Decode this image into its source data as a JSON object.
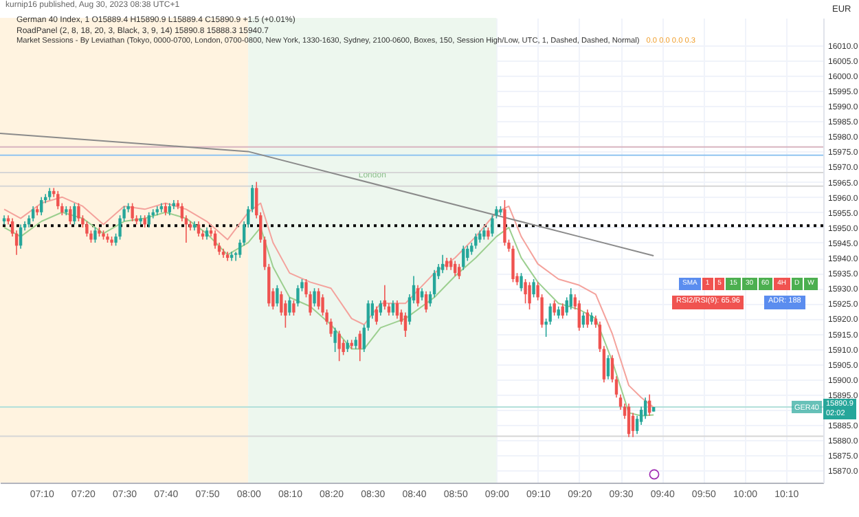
{
  "chart_data": {
    "type": "candlestick",
    "ylabel": "EUR",
    "annotations": [
      "kurnip16 published, Aug 30, 2023 08:38 UTC+1",
      "German 40 Index, 1  O15889.4 H15890.9 L15889.4 C15890.9 +1.5 (+0.01%)",
      "RoadPanel (2, 8, 18, 20, 3, Black, 3, 9, 14)  15890.8  15888.3  15940.7",
      "Market Sessions - By Leviathan (Tokyo, 0000-0700, London, 0700-0800, New York, 1330-1630, Sydney, 2100-0600, Boxes, 150, Session High/Low, UTC, 1, Dashed, Dashed, Normal)",
      "0.0 0.0 0.0 0.3",
      "SMA 1 5 15 30 60 4H D W",
      "RSI2/RSI(9): 65.96",
      "ADR: 188",
      "15890.9",
      "02:02"
    ],
    "x": [
      7.0167,
      7.0333,
      7.05,
      7.0667,
      7.0833,
      7.1,
      7.1167,
      7.1333,
      7.15,
      7.1667,
      7.1833,
      7.2,
      7.2167,
      7.2333,
      7.25,
      7.2667,
      7.2833,
      7.3,
      7.3167,
      7.3333,
      7.35,
      7.3667,
      7.3833,
      7.4,
      7.4167,
      7.4333,
      7.45,
      7.4667,
      7.4833,
      7.5,
      7.5167,
      7.5333,
      7.55,
      7.5667,
      7.5833,
      7.6,
      7.6167,
      7.6333,
      7.65,
      7.6667,
      7.6833,
      7.7,
      7.7167,
      7.7333,
      7.75,
      7.7667,
      7.7833,
      7.8,
      7.8167,
      7.8333,
      7.85,
      7.8667,
      7.8833,
      7.9,
      7.9167,
      7.9333,
      7.95,
      7.9667,
      7.9833,
      8,
      8.0167,
      8.0333,
      8.05,
      8.0667,
      8.0833,
      8.1,
      8.1167,
      8.1333,
      8.15,
      8.1667,
      8.1833,
      8.2,
      8.2167,
      8.2333,
      8.25,
      8.2667,
      8.2833,
      8.3,
      8.3167,
      8.3333,
      8.35,
      8.3667,
      8.3833,
      8.4,
      8.4167,
      8.4333,
      8.45,
      8.4667,
      8.4833,
      8.5,
      8.5167,
      8.5333,
      8.55,
      8.5667,
      8.5833,
      8.6,
      8.6167,
      8.6333,
      8.65,
      8.6667,
      8.6833,
      8.7,
      8.7167,
      8.7333,
      8.75,
      8.7667,
      8.7833,
      8.8,
      8.8167,
      8.8333,
      8.85,
      8.8667,
      8.8833,
      8.9,
      8.9167,
      8.9333,
      8.95,
      8.9667,
      8.9833,
      9,
      9.0167,
      9.0333,
      9.05,
      9.0667,
      9.0833,
      9.1,
      9.1167,
      9.1333,
      9.15,
      9.1667,
      9.1833,
      9.2,
      9.2167,
      9.2333,
      9.25,
      9.2667,
      9.2833,
      9.3,
      9.3167,
      9.3333,
      9.35,
      9.3667,
      9.3833,
      9.4,
      9.4167,
      9.4333,
      9.45,
      9.4667,
      9.4833,
      9.5,
      9.5167,
      9.5333,
      9.55,
      9.5667,
      9.5833,
      9.6,
      9.6167,
      9.6333
    ],
    "ohlc": [
      [
        15952,
        15954,
        15951,
        15953
      ],
      [
        15953,
        15954,
        15951,
        15952
      ],
      [
        15952,
        15953,
        15947,
        15948
      ],
      [
        15948,
        15949,
        15941,
        15944
      ],
      [
        15944,
        15951,
        15943,
        15950
      ],
      [
        15950,
        15952,
        15949,
        15951
      ],
      [
        15951,
        15954,
        15950,
        15953
      ],
      [
        15953,
        15957,
        15952,
        15956
      ],
      [
        15956,
        15957,
        15954,
        15955
      ],
      [
        15955,
        15960,
        15954,
        15959
      ],
      [
        15959,
        15961,
        15958,
        15960
      ],
      [
        15960,
        15963,
        15959,
        15962
      ],
      [
        15962,
        15963,
        15960,
        15961
      ],
      [
        15961,
        15962,
        15956,
        15957
      ],
      [
        15957,
        15958,
        15954,
        15955
      ],
      [
        15955,
        15957,
        15954,
        15956
      ],
      [
        15956,
        15957,
        15951,
        15952
      ],
      [
        15952,
        15958,
        15951,
        15957
      ],
      [
        15957,
        15958,
        15952,
        15953
      ],
      [
        15953,
        15954,
        15950,
        15951
      ],
      [
        15951,
        15952,
        15947,
        15948
      ],
      [
        15948,
        15949,
        15945,
        15946
      ],
      [
        15946,
        15950,
        15945,
        15949
      ],
      [
        15949,
        15950,
        15947,
        15948
      ],
      [
        15948,
        15949,
        15946,
        15947
      ],
      [
        15947,
        15948,
        15945,
        15946
      ],
      [
        15946,
        15947,
        15944,
        15945
      ],
      [
        15945,
        15948,
        15944,
        15947
      ],
      [
        15947,
        15954,
        15946,
        15953
      ],
      [
        15953,
        15957,
        15952,
        15956
      ],
      [
        15956,
        15958,
        15955,
        15957
      ],
      [
        15957,
        15958,
        15952,
        15953
      ],
      [
        15953,
        15954,
        15951,
        15952
      ],
      [
        15952,
        15954,
        15951,
        15953
      ],
      [
        15953,
        15954,
        15950,
        15951
      ],
      [
        15951,
        15955,
        15950,
        15954
      ],
      [
        15954,
        15956,
        15953,
        15955
      ],
      [
        15955,
        15957,
        15954,
        15956
      ],
      [
        15956,
        15958,
        15955,
        15957
      ],
      [
        15957,
        15958,
        15954,
        15955
      ],
      [
        15955,
        15958,
        15954,
        15957
      ],
      [
        15957,
        15959,
        15956,
        15958
      ],
      [
        15958,
        15959,
        15956,
        15957
      ],
      [
        15957,
        15958,
        15952,
        15953
      ],
      [
        15953,
        15954,
        15945,
        15951
      ],
      [
        15951,
        15952,
        15949,
        15950
      ],
      [
        15950,
        15952,
        15949,
        15951
      ],
      [
        15951,
        15952,
        15947,
        15948
      ],
      [
        15948,
        15949,
        15946,
        15947
      ],
      [
        15947,
        15950,
        15946,
        15949
      ],
      [
        15949,
        15950,
        15947,
        15948
      ],
      [
        15948,
        15949,
        15943,
        15944
      ],
      [
        15944,
        15945,
        15941,
        15942
      ],
      [
        15942,
        15943,
        15940,
        15941
      ],
      [
        15941,
        15942,
        15939,
        15940
      ],
      [
        15940,
        15942,
        15939,
        15941
      ],
      [
        15941,
        15942,
        15939,
        15941.5
      ],
      [
        15941,
        15946,
        15940,
        15945
      ],
      [
        15945,
        15952,
        15944,
        15951
      ],
      [
        15951,
        15957,
        15950,
        15956
      ],
      [
        15956,
        15964,
        15955,
        15963
      ],
      [
        15963,
        15965,
        15953,
        15954
      ],
      [
        15954,
        15955,
        15945,
        15946
      ],
      [
        15946,
        15947,
        15936,
        15937
      ],
      [
        15937,
        15938,
        15924,
        15925
      ],
      [
        15929,
        15930,
        15923,
        15924
      ],
      [
        15925,
        15931,
        15924,
        15930
      ],
      [
        15928,
        15929,
        15921,
        15922
      ],
      [
        15925,
        15926,
        15917,
        15921
      ],
      [
        15922,
        15927,
        15921,
        15926
      ],
      [
        15925,
        15926,
        15921,
        15922
      ],
      [
        15925,
        15931,
        15924,
        15930
      ],
      [
        15930,
        15933,
        15929,
        15932
      ],
      [
        15932,
        15933,
        15927,
        15928
      ],
      [
        15928,
        15929,
        15921,
        15922
      ],
      [
        15925,
        15930,
        15924,
        15929
      ],
      [
        15929,
        15930,
        15923,
        15924
      ],
      [
        15927,
        15928,
        15921,
        15922
      ],
      [
        15922,
        15923,
        15918,
        15919
      ],
      [
        15919,
        15920,
        15914,
        15915
      ],
      [
        15912,
        15917,
        15909,
        15916
      ],
      [
        15915,
        15916,
        15906,
        15910
      ],
      [
        15912,
        15913,
        15908,
        15909
      ],
      [
        15910,
        15913,
        15909,
        15912
      ],
      [
        15912,
        15913,
        15910,
        15911
      ],
      [
        15911,
        15914,
        15910,
        15913
      ],
      [
        15915,
        15916,
        15906,
        15910
      ],
      [
        15910,
        15918,
        15909,
        15917
      ],
      [
        15917,
        15926,
        15916,
        15925
      ],
      [
        15921,
        15926,
        15920,
        15925
      ],
      [
        15923,
        15924,
        15918,
        15919
      ],
      [
        15922,
        15926,
        15921,
        15925
      ],
      [
        15926,
        15931,
        15923,
        15924
      ],
      [
        15924,
        15925,
        15921,
        15922
      ],
      [
        15922,
        15926,
        15921,
        15925
      ],
      [
        15925,
        15926,
        15920,
        15921
      ],
      [
        15922,
        15923,
        15918,
        15919
      ],
      [
        15921,
        15922,
        15914,
        15916
      ],
      [
        15919,
        15928,
        15918,
        15927
      ],
      [
        15926,
        15934,
        15925,
        15931
      ],
      [
        15930,
        15931,
        15924,
        15925
      ],
      [
        15927,
        15930,
        15926,
        15929
      ],
      [
        15928,
        15929,
        15922,
        15923
      ],
      [
        15925,
        15929,
        15924,
        15928
      ],
      [
        15928,
        15936,
        15927,
        15935
      ],
      [
        15934,
        15938,
        15933,
        15937
      ],
      [
        15936,
        15941,
        15935,
        15938
      ],
      [
        15939,
        15940,
        15936,
        15937
      ],
      [
        15939,
        15940,
        15936,
        15937
      ],
      [
        15938,
        15939,
        15934,
        15935
      ],
      [
        15937,
        15938,
        15933,
        15934
      ],
      [
        15937,
        15944,
        15936,
        15943
      ],
      [
        15940,
        15944,
        15939,
        15943
      ],
      [
        15942,
        15945,
        15941,
        15944
      ],
      [
        15944,
        15948,
        15943,
        15947
      ],
      [
        15946,
        15949,
        15945,
        15948
      ],
      [
        15947,
        15950,
        15946,
        15949
      ],
      [
        15949,
        15950,
        15946,
        15947
      ],
      [
        15948,
        15954,
        15947,
        15953
      ],
      [
        15954,
        15957,
        15953,
        15956
      ],
      [
        15955,
        15957,
        15954,
        15956
      ],
      [
        15956,
        15959,
        15944,
        15945
      ],
      [
        15945,
        15946,
        15942,
        15943
      ],
      [
        15943,
        15944,
        15932,
        15933
      ],
      [
        15934,
        15935,
        15931,
        15932
      ],
      [
        15930,
        15935,
        15929,
        15934
      ],
      [
        15932,
        15933,
        15925,
        15928
      ],
      [
        15931,
        15932,
        15923,
        15925
      ],
      [
        15928,
        15933,
        15927,
        15932
      ],
      [
        15931,
        15932,
        15926,
        15927
      ],
      [
        15927,
        15928,
        15917,
        15918
      ],
      [
        15918,
        15920,
        15914,
        15919
      ],
      [
        15919,
        15925,
        15918,
        15924
      ],
      [
        15925,
        15926,
        15921,
        15922
      ],
      [
        15921,
        15924,
        15920,
        15923
      ],
      [
        15924,
        15925,
        15920,
        15921
      ],
      [
        15922,
        15927,
        15921,
        15926
      ],
      [
        15924,
        15930,
        15923,
        15928
      ],
      [
        15927,
        15928,
        15923,
        15924
      ],
      [
        15925,
        15926,
        15916,
        15917
      ],
      [
        15918,
        15922,
        15917,
        15921
      ],
      [
        15922,
        15923,
        15917,
        15918
      ],
      [
        15919,
        15922,
        15918,
        15921
      ],
      [
        15920,
        15921,
        15917,
        15918
      ],
      [
        15918,
        15919,
        15909,
        15910
      ],
      [
        15910,
        15911,
        15899,
        15900
      ],
      [
        15901,
        15908,
        15900,
        15907
      ],
      [
        15907,
        15908,
        15899,
        15900
      ],
      [
        15900,
        15901,
        15894,
        15895
      ],
      [
        15894,
        15895,
        15890,
        15891
      ],
      [
        15891,
        15892,
        15887,
        15888
      ],
      [
        15891,
        15892,
        15881,
        15882
      ],
      [
        15888,
        15889,
        15881,
        15883
      ],
      [
        15883,
        15888,
        15882,
        15887
      ],
      [
        15886,
        15891,
        15885,
        15890
      ],
      [
        15888,
        15894,
        15887,
        15893
      ],
      [
        15893,
        15895,
        15888,
        15889
      ],
      [
        15889.4,
        15890.9,
        15889.4,
        15890.9
      ]
    ],
    "series": [
      {
        "type": "line",
        "color": "#f4a29c",
        "x": [
          7.0167,
          7.0833,
          7.1667,
          7.25,
          7.3333,
          7.4167,
          7.5,
          7.5833,
          7.6667,
          7.75,
          7.8333,
          7.9167,
          8,
          8.05,
          8.1,
          8.1667,
          8.25,
          8.3333,
          8.4167,
          8.4667,
          8.5333,
          8.6333,
          8.75,
          8.8333,
          8.9167,
          9,
          9.05,
          9.1,
          9.1667,
          9.25,
          9.3333,
          9.4,
          9.4667,
          9.5333,
          9.5833,
          9.6333
        ],
        "values": [
          15956,
          15953,
          15958,
          15960,
          15957,
          15951,
          15957,
          15956,
          15958,
          15956,
          15952,
          15946,
          15955,
          15958,
          15945,
          15935,
          15932,
          15930,
          15920,
          15918,
          15925,
          15925,
          15935,
          15940,
          15947,
          15955,
          15957,
          15947,
          15938,
          15933,
          15931,
          15928,
          15915,
          15898,
          15894,
          15890.8
        ]
      },
      {
        "type": "line",
        "color": "#9ccf8f",
        "x": [
          7.0167,
          7.0833,
          7.1667,
          7.25,
          7.3333,
          7.4167,
          7.5,
          7.5833,
          7.6667,
          7.75,
          7.8333,
          7.9167,
          8,
          8.05,
          8.1,
          8.1667,
          8.25,
          8.3333,
          8.4167,
          8.4667,
          8.5333,
          8.6333,
          8.75,
          8.8333,
          8.9167,
          9,
          9.05,
          9.1,
          9.1667,
          9.25,
          9.3333,
          9.4,
          9.4667,
          9.5333,
          9.5833,
          9.6333
        ],
        "values": [
          15950,
          15947,
          15952,
          15955,
          15953,
          15948,
          15952,
          15953,
          15955,
          15953,
          15948,
          15941,
          15945,
          15950,
          15937,
          15927,
          15924,
          15918,
          15910,
          15910,
          15917,
          15920,
          15927,
          15934,
          15940,
          15947,
          15950,
          15940,
          15932,
          15925,
          15923,
          15920,
          15906,
          15889,
          15888,
          15888.3
        ]
      },
      {
        "type": "line",
        "color": "#8a8a8a",
        "x": [
          7,
          8,
          9,
          9.3333,
          9.6333
        ],
        "values": [
          15981,
          15975,
          15954,
          15947,
          15940.7
        ]
      }
    ],
    "bands": [
      {
        "axis": "x",
        "from": 7,
        "to": 8,
        "color": "#fff3e0"
      },
      {
        "axis": "x",
        "from": 8,
        "to": 9,
        "color": "#edf7ee",
        "label": "London"
      }
    ],
    "ref_lines": [
      {
        "axis": "y",
        "value": 15976.5,
        "color": "#d8b4c0"
      },
      {
        "axis": "y",
        "value": 15973.8,
        "color": "#90c4f0"
      },
      {
        "axis": "y",
        "value": 15968.1,
        "color": "#d6d6d6"
      },
      {
        "axis": "y",
        "value": 15963.6,
        "color": "#d6d6d6"
      },
      {
        "axis": "y",
        "value": 15950.6,
        "color": "#000000",
        "line_style": "dotted"
      },
      {
        "axis": "y",
        "value": 15890.9,
        "color": "#b2e0da",
        "label": "GER40"
      },
      {
        "axis": "y",
        "value": 15881.3,
        "color": "#d6d6d6"
      }
    ],
    "xlim": [
      7,
      10.3167
    ],
    "xticks": [
      {
        "value": 7.1667,
        "label": "07:10"
      },
      {
        "value": 7.3333,
        "label": "07:20"
      },
      {
        "value": 7.5,
        "label": "07:30"
      },
      {
        "value": 7.6667,
        "label": "07:40"
      },
      {
        "value": 7.8333,
        "label": "07:50"
      },
      {
        "value": 8,
        "label": "08:00"
      },
      {
        "value": 8.1667,
        "label": "08:10"
      },
      {
        "value": 8.3333,
        "label": "08:20"
      },
      {
        "value": 8.5,
        "label": "08:30"
      },
      {
        "value": 8.6667,
        "label": "08:40"
      },
      {
        "value": 8.8333,
        "label": "08:50"
      },
      {
        "value": 9,
        "label": "09:00"
      },
      {
        "value": 9.1667,
        "label": "09:10"
      },
      {
        "value": 9.3333,
        "label": "09:20"
      },
      {
        "value": 9.5,
        "label": "09:30"
      },
      {
        "value": 9.6667,
        "label": "09:40"
      },
      {
        "value": 9.8333,
        "label": "09:50"
      },
      {
        "value": 10,
        "label": "10:00"
      },
      {
        "value": 10.1667,
        "label": "10:10"
      }
    ],
    "ylim": [
      15866,
      16019
    ],
    "yticks": [
      {
        "value": 15870,
        "label": "15870.0"
      },
      {
        "value": 15875,
        "label": "15875.0"
      },
      {
        "value": 15880,
        "label": "15880.0"
      },
      {
        "value": 15885,
        "label": "15885.0"
      },
      {
        "value": 15890,
        "label": null
      },
      {
        "value": 15895,
        "label": "15895.0"
      },
      {
        "value": 15900,
        "label": "15900.0"
      },
      {
        "value": 15905,
        "label": "15905.0"
      },
      {
        "value": 15910,
        "label": "15910.0"
      },
      {
        "value": 15915,
        "label": "15915.0"
      },
      {
        "value": 15920,
        "label": "15920.0"
      },
      {
        "value": 15925,
        "label": "15925.0"
      },
      {
        "value": 15930,
        "label": "15930.0"
      },
      {
        "value": 15935,
        "label": "15935.0"
      },
      {
        "value": 15940,
        "label": "15940.0"
      },
      {
        "value": 15945,
        "label": "15945.0"
      },
      {
        "value": 15950,
        "label": "15950.0"
      },
      {
        "value": 15955,
        "label": "15955.0"
      },
      {
        "value": 15960,
        "label": "15960.0"
      },
      {
        "value": 15965,
        "label": "15965.0"
      },
      {
        "value": 15970,
        "label": "15970.0"
      },
      {
        "value": 15975,
        "label": "15975.0"
      },
      {
        "value": 15980,
        "label": "15980.0"
      },
      {
        "value": 15985,
        "label": "15985.0"
      },
      {
        "value": 15990,
        "label": "15990.0"
      },
      {
        "value": 15995,
        "label": "15995.0"
      },
      {
        "value": 16000,
        "label": "16000.0"
      },
      {
        "value": 16005,
        "label": "16005.0"
      },
      {
        "value": 16010,
        "label": "16010.0"
      }
    ],
    "grid": true
  }
}
